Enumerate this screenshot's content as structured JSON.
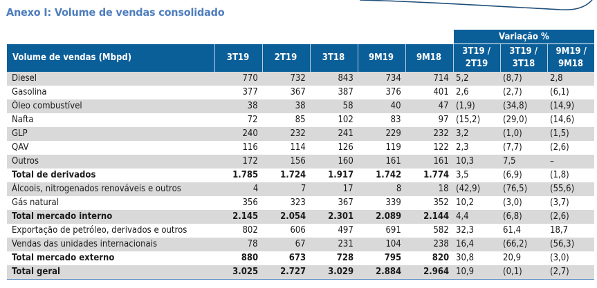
{
  "title": "Anexo I: Volume de vendas consolidado",
  "header": {
    "row_label": "Volume de vendas (Mbpd)",
    "variation_group": "Variação %",
    "period_columns": [
      "3T19",
      "2T19",
      "3T18",
      "9M19",
      "9M18"
    ],
    "variation_columns": [
      {
        "line1": "3T19 /",
        "line2": "2T19"
      },
      {
        "line1": "3T19 /",
        "line2": "3T18"
      },
      {
        "line1": "9M19 /",
        "line2": "9M18"
      }
    ]
  },
  "rows": [
    {
      "label": "Diesel",
      "bold": false,
      "values": [
        "770",
        "732",
        "843",
        "734",
        "714"
      ],
      "variations": [
        "5,2",
        "(8,7)",
        "2,8"
      ]
    },
    {
      "label": "Gasolina",
      "bold": false,
      "values": [
        "377",
        "367",
        "387",
        "376",
        "401"
      ],
      "variations": [
        "2,6",
        "(2,7)",
        "(6,1)"
      ]
    },
    {
      "label": "Óleo combustível",
      "bold": false,
      "values": [
        "38",
        "38",
        "58",
        "40",
        "47"
      ],
      "variations": [
        "(1,9)",
        "(34,8)",
        "(14,9)"
      ]
    },
    {
      "label": "Nafta",
      "bold": false,
      "values": [
        "72",
        "85",
        "102",
        "83",
        "97"
      ],
      "variations": [
        "(15,2)",
        "(29,0)",
        "(14,6)"
      ]
    },
    {
      "label": "GLP",
      "bold": false,
      "values": [
        "240",
        "232",
        "241",
        "229",
        "232"
      ],
      "variations": [
        "3,2",
        "(1,0)",
        "(1,5)"
      ]
    },
    {
      "label": "QAV",
      "bold": false,
      "values": [
        "116",
        "114",
        "126",
        "119",
        "122"
      ],
      "variations": [
        "2,3",
        "(7,7)",
        "(2,6)"
      ]
    },
    {
      "label": "Outros",
      "bold": false,
      "values": [
        "172",
        "156",
        "160",
        "161",
        "161"
      ],
      "variations": [
        "10,3",
        "7,5",
        "–"
      ]
    },
    {
      "label": "Total de derivados",
      "bold": true,
      "values": [
        "1.785",
        "1.724",
        "1.917",
        "1.742",
        "1.774"
      ],
      "variations": [
        "3,5",
        "(6,9)",
        "(1,8)"
      ]
    },
    {
      "label": "Álcoois, nitrogenados renováveis e outros",
      "bold": false,
      "values": [
        "4",
        "7",
        "17",
        "8",
        "18"
      ],
      "variations": [
        "(42,9)",
        "(76,5)",
        "(55,6)"
      ]
    },
    {
      "label": "Gás natural",
      "bold": false,
      "values": [
        "356",
        "323",
        "367",
        "339",
        "352"
      ],
      "variations": [
        "10,2",
        "(3,0)",
        "(3,7)"
      ]
    },
    {
      "label": "Total mercado interno",
      "bold": true,
      "values": [
        "2.145",
        "2.054",
        "2.301",
        "2.089",
        "2.144"
      ],
      "variations": [
        "4,4",
        "(6,8)",
        "(2,6)"
      ]
    },
    {
      "label": "Exportação de petróleo, derivados e outros",
      "bold": false,
      "values": [
        "802",
        "606",
        "497",
        "691",
        "582"
      ],
      "variations": [
        "32,3",
        "61,4",
        "18,7"
      ]
    },
    {
      "label": "Vendas das unidades internacionais",
      "bold": false,
      "values": [
        "78",
        "67",
        "231",
        "104",
        "238"
      ],
      "variations": [
        "16,4",
        "(66,2)",
        "(56,3)"
      ]
    },
    {
      "label": "Total mercado externo",
      "bold": true,
      "values": [
        "880",
        "673",
        "728",
        "795",
        "820"
      ],
      "variations": [
        "30,8",
        "20,9",
        "(3,0)"
      ]
    },
    {
      "label": "Total geral",
      "bold": true,
      "values": [
        "3.025",
        "2.727",
        "3.029",
        "2.884",
        "2.964"
      ],
      "variations": [
        "10,9",
        "(0,1)",
        "(2,7)"
      ]
    }
  ],
  "colors": {
    "title": "#4e7dbd",
    "header_bg": "#0b5f99",
    "header_text": "#ffffff",
    "stripe": "#d9d9d9",
    "accent_curve": "#1f4e79"
  }
}
